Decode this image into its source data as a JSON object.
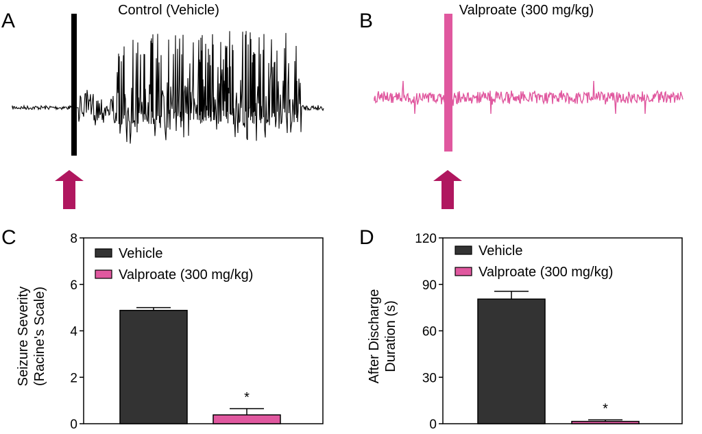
{
  "panels": {
    "a": {
      "letter": "A",
      "title": "Control (Vehicle)"
    },
    "b": {
      "letter": "B",
      "title": "Valproate (300 mg/kg)"
    }
  },
  "colors": {
    "vehicle": "#333333",
    "valproate": "#e0589f",
    "arrow": "#b0175f",
    "trace_control": "#000000",
    "trace_valproate": "#e0589f"
  },
  "chart_data": [
    {
      "letter": "C",
      "type": "bar",
      "categories": [
        "Vehicle",
        "Valproate (300 mg/kg)"
      ],
      "values": [
        4.88,
        0.38
      ],
      "errors": [
        0.12,
        0.27
      ],
      "significance": [
        "",
        "*"
      ],
      "ylabel": [
        "Seizure Severity",
        "(Racine's Scale)"
      ],
      "ylim": [
        0,
        8
      ],
      "yticks": [
        "0",
        "2",
        "4",
        "6",
        "8"
      ],
      "legend": [
        "Vehicle",
        "Valproate (300 mg/kg)"
      ],
      "legend_position": "top-left",
      "grid": false
    },
    {
      "letter": "D",
      "type": "bar",
      "categories": [
        "Vehicle",
        "Valproate (300 mg/kg)"
      ],
      "values": [
        80.5,
        1.5
      ],
      "errors": [
        5,
        1
      ],
      "significance": [
        "",
        "*"
      ],
      "ylabel": [
        "After Discharge",
        "Duration (s)"
      ],
      "ylim": [
        0,
        120
      ],
      "yticks": [
        "0",
        "30",
        "60",
        "90",
        "120"
      ],
      "legend": [
        "Vehicle",
        "Valproate (300 mg/kg)"
      ],
      "legend_position": "top-left",
      "grid": false
    }
  ]
}
